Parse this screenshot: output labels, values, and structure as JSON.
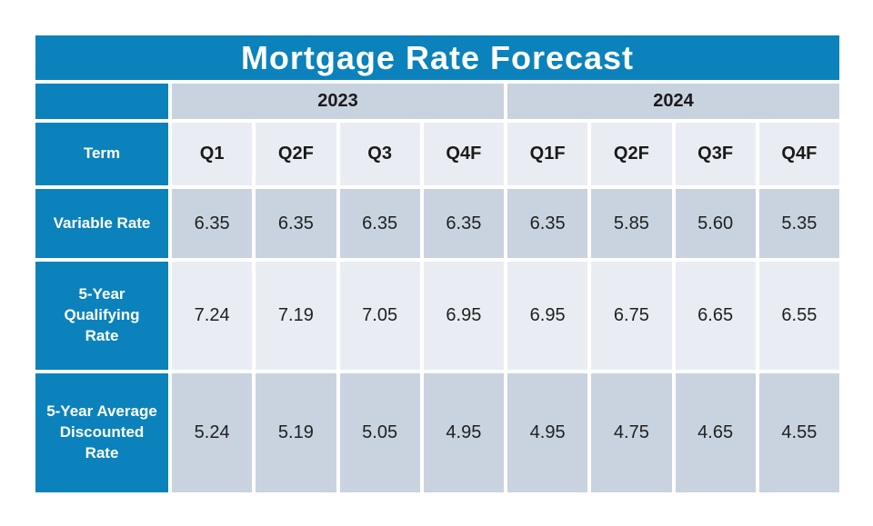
{
  "title": "Mortgage Rate Forecast",
  "colors": {
    "accent_blue": "#0b82bb",
    "band_light": "#e9edf3",
    "band_medium": "#c9d3e0",
    "title_text": "#ffffff",
    "body_text": "#1f1f1f"
  },
  "table": {
    "row_header": "Term",
    "year_groups": [
      {
        "label": "2023"
      },
      {
        "label": "2024"
      }
    ],
    "quarter_headers": [
      "Q1",
      "Q2F",
      "Q3",
      "Q4F",
      "Q1F",
      "Q2F",
      "Q3F",
      "Q4F"
    ],
    "rows": [
      {
        "label": "Variable Rate",
        "values": [
          "6.35",
          "6.35",
          "6.35",
          "6.35",
          "6.35",
          "5.85",
          "5.60",
          "5.35"
        ]
      },
      {
        "label": "5-Year Qualifying Rate",
        "values": [
          "7.24",
          "7.19",
          "7.05",
          "6.95",
          "6.95",
          "6.75",
          "6.65",
          "6.55"
        ]
      },
      {
        "label": "5-Year Average Discounted Rate",
        "values": [
          "5.24",
          "5.19",
          "5.05",
          "4.95",
          "4.95",
          "4.75",
          "4.65",
          "4.55"
        ]
      }
    ]
  },
  "chart_data": {
    "type": "table",
    "title": "Mortgage Rate Forecast",
    "row_header": "Term",
    "column_groups": [
      {
        "label": "2023",
        "columns": [
          "Q1",
          "Q2F",
          "Q3",
          "Q4F"
        ]
      },
      {
        "label": "2024",
        "columns": [
          "Q1F",
          "Q2F",
          "Q3F",
          "Q4F"
        ]
      }
    ],
    "rows": [
      {
        "term": "Variable Rate",
        "values": [
          6.35,
          6.35,
          6.35,
          6.35,
          6.35,
          5.85,
          5.6,
          5.35
        ]
      },
      {
        "term": "5-Year Qualifying Rate",
        "values": [
          7.24,
          7.19,
          7.05,
          6.95,
          6.95,
          6.75,
          6.65,
          6.55
        ]
      },
      {
        "term": "5-Year Average Discounted Rate",
        "values": [
          5.24,
          5.19,
          5.05,
          4.95,
          4.95,
          4.75,
          4.65,
          4.55
        ]
      }
    ]
  }
}
